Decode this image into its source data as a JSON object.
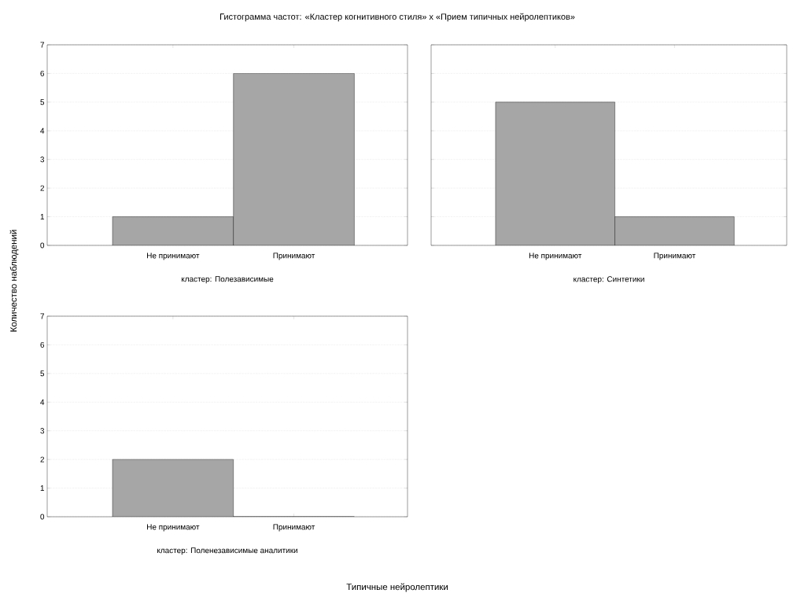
{
  "chart_data": [
    {
      "type": "bar",
      "title": "Гистограмма частот: «Кластер когнитивного стиля» x «Прием типичных нейролептиков»",
      "ylabel": "Количество наблюдений",
      "xlabel": "кластер: Полезависимые",
      "categories": [
        "Не принимают",
        "Принимают"
      ],
      "values": [
        1,
        6
      ],
      "color": "#a6a6a6",
      "ylim": [
        0,
        7
      ],
      "yticks": [
        0,
        1,
        2,
        3,
        4,
        5,
        6,
        7
      ],
      "grid": "y"
    },
    {
      "type": "bar",
      "xlabel": "кластер: Синтетики",
      "categories": [
        "Не принимают",
        "Принимают"
      ],
      "values": [
        5,
        1
      ],
      "color": "#a6a6a6",
      "ylim": [
        0,
        7
      ],
      "yticks": [
        0,
        1,
        2,
        3,
        4,
        5,
        6,
        7
      ],
      "grid": "y",
      "tick_labels": "x"
    },
    {
      "type": "bar",
      "xlabel": "кластер: Поленезависимые аналитики",
      "annotations": [
        "Типичные нейролептики"
      ],
      "categories": [
        "Не принимают",
        "Принимают"
      ],
      "values": [
        2,
        0
      ],
      "color": "#a6a6a6",
      "ylim": [
        0,
        7
      ],
      "yticks": [
        0,
        1,
        2,
        3,
        4,
        5,
        6,
        7
      ],
      "grid": "y"
    }
  ]
}
